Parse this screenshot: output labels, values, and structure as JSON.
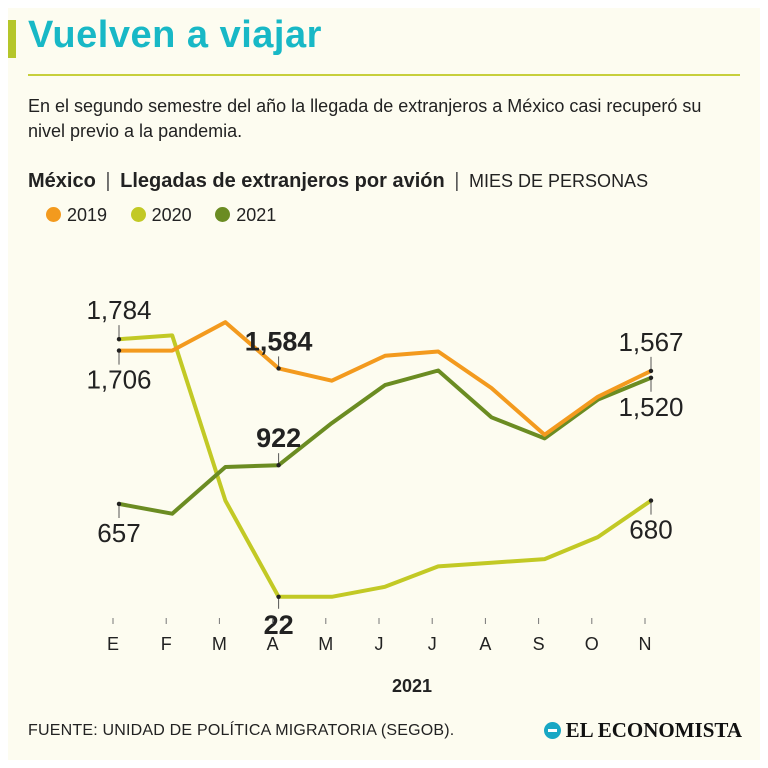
{
  "header": {
    "title": "Vuelven a viajar",
    "subtitle": "En el segundo semestre del año la llegada de extranjeros a México casi recuperó su nivel previo a la pandemia."
  },
  "chart_heading": {
    "country": "México",
    "separator": "|",
    "metric": "Llegadas de extranjeros por avión",
    "units": "MIES DE PERSONAS"
  },
  "colors": {
    "title": "#18b8c6",
    "accent": "#b5c62a",
    "s2019": "#f39a1e",
    "s2020": "#c2c925",
    "s2021": "#6b8c22"
  },
  "chart_data": {
    "type": "line",
    "categories": [
      "E",
      "F",
      "M",
      "A",
      "M",
      "J",
      "J",
      "A",
      "S",
      "O",
      "N"
    ],
    "xlabel": "2021",
    "ylabel": "",
    "ylim": [
      0,
      2150
    ],
    "grid": false,
    "legend_position": "top",
    "series": [
      {
        "name": "2019",
        "color": "#f39a1e",
        "values": [
          1706,
          1706,
          1900,
          1584,
          1500,
          1670,
          1700,
          1450,
          1130,
          1390,
          1567
        ]
      },
      {
        "name": "2020",
        "color": "#c2c925",
        "values": [
          1784,
          1810,
          680,
          22,
          22,
          90,
          230,
          255,
          280,
          430,
          680
        ]
      },
      {
        "name": "2021",
        "color": "#6b8c22",
        "values": [
          657,
          590,
          910,
          922,
          1210,
          1470,
          1570,
          1250,
          1105,
          1370,
          1520
        ]
      }
    ],
    "annotations": [
      {
        "text": "1,784",
        "series": 1,
        "index": 0,
        "bold": false,
        "pos": "above"
      },
      {
        "text": "1,706",
        "series": 0,
        "index": 0,
        "bold": false,
        "pos": "below"
      },
      {
        "text": "1,584",
        "series": 0,
        "index": 3,
        "bold": true,
        "pos": "above"
      },
      {
        "text": "922",
        "series": 2,
        "index": 3,
        "bold": true,
        "pos": "above"
      },
      {
        "text": "657",
        "series": 2,
        "index": 0,
        "bold": false,
        "pos": "below"
      },
      {
        "text": "22",
        "series": 1,
        "index": 3,
        "bold": true,
        "pos": "below"
      },
      {
        "text": "1,567",
        "series": 0,
        "index": 10,
        "bold": false,
        "pos": "above"
      },
      {
        "text": "1,520",
        "series": 2,
        "index": 10,
        "bold": false,
        "pos": "below"
      },
      {
        "text": "680",
        "series": 1,
        "index": 10,
        "bold": false,
        "pos": "below"
      }
    ]
  },
  "footer": {
    "source": "FUENTE: UNIDAD DE POLÍTICA MIGRATORIA (SEGOB).",
    "brand": "EL ECONOMISTA"
  }
}
